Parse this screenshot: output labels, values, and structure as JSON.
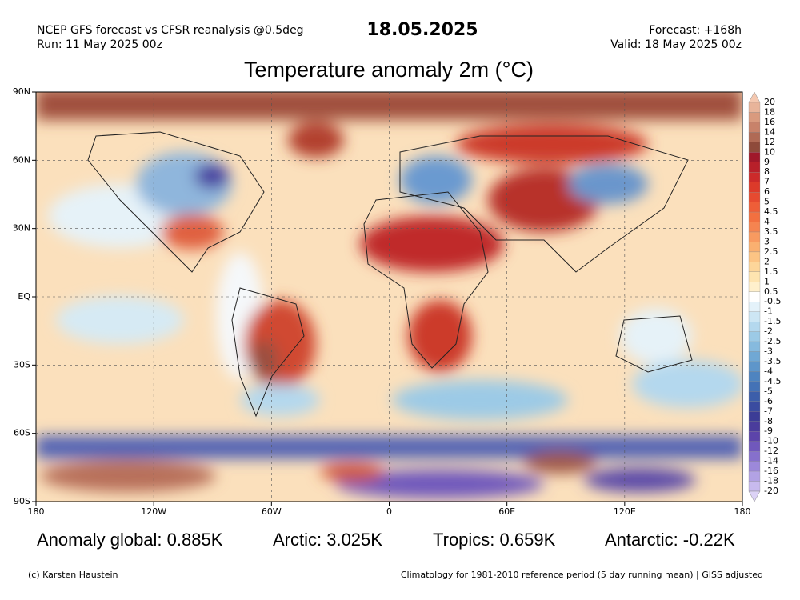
{
  "header": {
    "source": "NCEP GFS forecast vs CFSR reanalysis @0.5deg",
    "run": "Run: 11 May 2025 00z",
    "date": "18.05.2025",
    "forecast": "Forecast: +168h",
    "valid": "Valid: 18 May 2025 00z"
  },
  "map": {
    "title": "Temperature anomaly 2m (°C)",
    "lat_labels": [
      "90N",
      "60N",
      "30N",
      "EQ",
      "30S",
      "60S",
      "90S"
    ],
    "lon_labels": [
      "180",
      "120W",
      "60W",
      "0",
      "60E",
      "120E",
      "180"
    ]
  },
  "colorbar": {
    "levels": [
      20,
      18,
      16,
      14,
      12,
      10,
      9,
      8,
      7,
      6,
      5,
      4.5,
      4,
      3.5,
      3,
      2.5,
      2,
      1.5,
      1,
      0.5,
      -0.5,
      -1,
      -1.5,
      -2,
      -2.5,
      -3,
      -3.5,
      -4,
      -4.5,
      -5,
      -6,
      -7,
      -8,
      -9,
      -10,
      -12,
      -14,
      -16,
      -18,
      -20
    ],
    "colors": [
      "#f4c8b0",
      "#e8b49a",
      "#d99a7e",
      "#c8826a",
      "#b06a55",
      "#8e4a3a",
      "#a0182a",
      "#b8202a",
      "#cc2a2a",
      "#dc3a2a",
      "#e64a30",
      "#ee5e38",
      "#f27040",
      "#f58450",
      "#f89a60",
      "#fab070",
      "#fcc484",
      "#fdd69a",
      "#fee4b0",
      "#fff0cc",
      "#ffffff",
      "#e4f2fa",
      "#cde6f4",
      "#b4d8ee",
      "#9ccae6",
      "#86bade",
      "#70a8d4",
      "#5e96ca",
      "#4e84c0",
      "#4472b6",
      "#3c5eaa",
      "#3a4ca0",
      "#3c3c96",
      "#4a3c9c",
      "#5c44aa",
      "#7058bc",
      "#8670cc",
      "#9c88da",
      "#b2a2e4",
      "#c8baee",
      "#dcd2f6"
    ]
  },
  "stats": [
    "Anomaly global: 0.885K",
    "Arctic: 3.025K",
    "Tropics: 0.659K",
    "Antarctic: -0.22K"
  ],
  "footer": {
    "credit": "(c) Karsten Haustein",
    "note": "Climatology for 1981-2010 reference period (5 day running mean) | GISS adjusted"
  }
}
